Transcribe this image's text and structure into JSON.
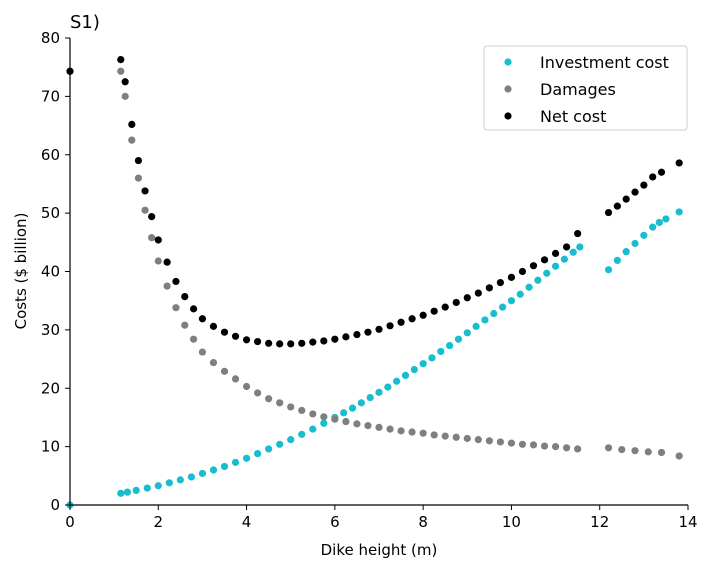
{
  "chart_data": {
    "type": "scatter",
    "title": "S1)",
    "xlabel": "Dike height (m)",
    "ylabel": "Costs ($ billion)",
    "xlim": [
      0,
      14
    ],
    "ylim": [
      0,
      80
    ],
    "xticks": [
      0,
      2,
      4,
      6,
      8,
      10,
      12,
      14
    ],
    "yticks": [
      0,
      10,
      20,
      30,
      40,
      50,
      60,
      70,
      80
    ],
    "grid": false,
    "legend_position": "top-right",
    "series": [
      {
        "name": "Investment cost",
        "color": "#17becf",
        "x": [
          0.0,
          1.15,
          1.3,
          1.5,
          1.75,
          2.0,
          2.25,
          2.5,
          2.75,
          3.0,
          3.25,
          3.5,
          3.75,
          4.0,
          4.25,
          4.5,
          4.75,
          5.0,
          5.25,
          5.5,
          5.75,
          6.0,
          6.2,
          6.4,
          6.6,
          6.8,
          7.0,
          7.2,
          7.4,
          7.6,
          7.8,
          8.0,
          8.2,
          8.4,
          8.6,
          8.8,
          9.0,
          9.2,
          9.4,
          9.6,
          9.8,
          10.0,
          10.2,
          10.4,
          10.6,
          10.8,
          11.0,
          11.2,
          11.4,
          11.55,
          12.2,
          12.4,
          12.6,
          12.8,
          13.0,
          13.2,
          13.35,
          13.5,
          13.8
        ],
        "y": [
          0.0,
          2.0,
          2.2,
          2.5,
          2.9,
          3.3,
          3.8,
          4.3,
          4.8,
          5.4,
          6.0,
          6.6,
          7.3,
          8.0,
          8.8,
          9.6,
          10.4,
          11.2,
          12.1,
          13.0,
          14.0,
          15.0,
          15.8,
          16.6,
          17.5,
          18.4,
          19.3,
          20.2,
          21.2,
          22.2,
          23.2,
          24.2,
          25.2,
          26.3,
          27.3,
          28.4,
          29.5,
          30.6,
          31.7,
          32.8,
          33.9,
          35.0,
          36.1,
          37.3,
          38.5,
          39.7,
          40.9,
          42.1,
          43.3,
          44.2,
          40.3,
          41.9,
          43.4,
          44.8,
          46.2,
          47.6,
          48.4,
          49.0,
          50.2
        ]
      },
      {
        "name": "Damages",
        "color": "#7f7f7f",
        "x": [
          0.0,
          1.15,
          1.25,
          1.4,
          1.55,
          1.7,
          1.85,
          2.0,
          2.2,
          2.4,
          2.6,
          2.8,
          3.0,
          3.25,
          3.5,
          3.75,
          4.0,
          4.25,
          4.5,
          4.75,
          5.0,
          5.25,
          5.5,
          5.75,
          6.0,
          6.25,
          6.5,
          6.75,
          7.0,
          7.25,
          7.5,
          7.75,
          8.0,
          8.25,
          8.5,
          8.75,
          9.0,
          9.25,
          9.5,
          9.75,
          10.0,
          10.25,
          10.5,
          10.75,
          11.0,
          11.25,
          11.5,
          12.2,
          12.5,
          12.8,
          13.1,
          13.4,
          13.8
        ],
        "y": [
          74.3,
          74.3,
          70.0,
          62.5,
          56.0,
          50.5,
          45.8,
          41.8,
          37.5,
          33.8,
          30.8,
          28.4,
          26.2,
          24.4,
          22.9,
          21.6,
          20.3,
          19.2,
          18.2,
          17.5,
          16.8,
          16.2,
          15.6,
          15.1,
          14.7,
          14.3,
          13.9,
          13.6,
          13.3,
          13.0,
          12.7,
          12.5,
          12.3,
          12.0,
          11.8,
          11.6,
          11.4,
          11.2,
          11.0,
          10.8,
          10.6,
          10.4,
          10.3,
          10.1,
          10.0,
          9.8,
          9.6,
          9.8,
          9.5,
          9.3,
          9.1,
          9.0,
          8.4
        ]
      },
      {
        "name": "Net cost",
        "color": "#000000",
        "x": [
          0.0,
          1.15,
          1.25,
          1.4,
          1.55,
          1.7,
          1.85,
          2.0,
          2.2,
          2.4,
          2.6,
          2.8,
          3.0,
          3.25,
          3.5,
          3.75,
          4.0,
          4.25,
          4.5,
          4.75,
          5.0,
          5.25,
          5.5,
          5.75,
          6.0,
          6.25,
          6.5,
          6.75,
          7.0,
          7.25,
          7.5,
          7.75,
          8.0,
          8.25,
          8.5,
          8.75,
          9.0,
          9.25,
          9.5,
          9.75,
          10.0,
          10.25,
          10.5,
          10.75,
          11.0,
          11.25,
          11.5,
          12.2,
          12.4,
          12.6,
          12.8,
          13.0,
          13.2,
          13.4,
          13.8
        ],
        "y": [
          74.3,
          76.3,
          72.5,
          65.2,
          59.0,
          53.8,
          49.4,
          45.4,
          41.6,
          38.3,
          35.7,
          33.6,
          31.9,
          30.6,
          29.6,
          28.9,
          28.3,
          28.0,
          27.7,
          27.6,
          27.6,
          27.7,
          27.9,
          28.1,
          28.4,
          28.8,
          29.2,
          29.6,
          30.1,
          30.7,
          31.3,
          31.9,
          32.5,
          33.2,
          33.9,
          34.7,
          35.5,
          36.3,
          37.2,
          38.1,
          39.0,
          40.0,
          41.0,
          42.0,
          43.1,
          44.2,
          46.5,
          50.1,
          51.2,
          52.4,
          53.6,
          54.8,
          56.2,
          57.0,
          58.6
        ]
      }
    ]
  }
}
